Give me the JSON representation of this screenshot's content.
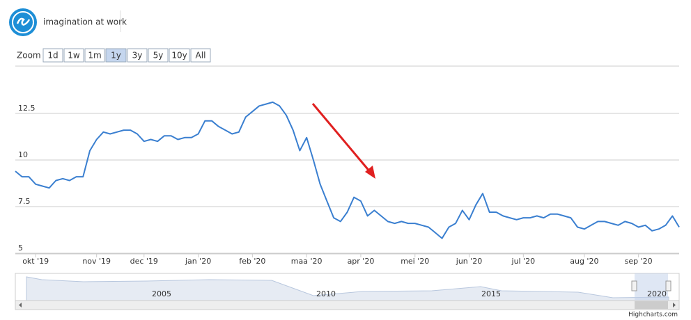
{
  "header": {
    "tagline": "imagination at work"
  },
  "zoom": {
    "label": "Zoom",
    "buttons": [
      "1d",
      "1w",
      "1m",
      "1y",
      "3y",
      "5y",
      "10y",
      "All"
    ],
    "selected": 3,
    "disabled": 0
  },
  "chart_data": {
    "type": "line",
    "color": "#3a7fd0",
    "grid": true,
    "categories": [
      null,
      null,
      null,
      "okt '19",
      null,
      null,
      null,
      null,
      null,
      null,
      null,
      null,
      "nov '19",
      null,
      null,
      null,
      null,
      null,
      null,
      "dec '19",
      null,
      null,
      null,
      null,
      null,
      null,
      null,
      "jan '20",
      null,
      null,
      null,
      null,
      null,
      null,
      null,
      "feb '20",
      null,
      null,
      null,
      null,
      null,
      null,
      null,
      "maa '20",
      null,
      null,
      null,
      null,
      null,
      null,
      null,
      "apr '20",
      null,
      null,
      null,
      null,
      null,
      null,
      null,
      "mei '20",
      null,
      null,
      null,
      null,
      null,
      null,
      null,
      "jun '20",
      null,
      null,
      null,
      null,
      null,
      null,
      null,
      "jul '20",
      null,
      null,
      null,
      null,
      null,
      null,
      null,
      null,
      "aug '20",
      null,
      null,
      null,
      null,
      null,
      null,
      null,
      "sep '20",
      null,
      null,
      null,
      null,
      null,
      null
    ],
    "values": [
      9.4,
      9.1,
      9.1,
      8.7,
      8.6,
      8.5,
      8.9,
      9.0,
      8.9,
      9.1,
      9.1,
      10.5,
      11.1,
      11.5,
      11.4,
      11.5,
      11.6,
      11.6,
      11.4,
      11.0,
      11.1,
      11.0,
      11.3,
      11.3,
      11.1,
      11.2,
      11.2,
      11.4,
      12.1,
      12.1,
      11.8,
      11.6,
      11.4,
      11.5,
      12.3,
      12.6,
      12.9,
      13.0,
      13.1,
      12.9,
      12.4,
      11.6,
      10.5,
      11.2,
      10.0,
      8.7,
      7.8,
      6.9,
      6.7,
      7.2,
      8.0,
      7.8,
      7.0,
      7.3,
      7.0,
      6.7,
      6.6,
      6.7,
      6.6,
      6.6,
      6.5,
      6.4,
      6.1,
      5.8,
      6.4,
      6.6,
      7.3,
      6.8,
      7.6,
      8.2,
      7.2,
      7.2,
      7.0,
      6.9,
      6.8,
      6.9,
      6.9,
      7.0,
      6.9,
      7.1,
      7.1,
      7.0,
      6.9,
      6.4,
      6.3,
      6.5,
      6.7,
      6.7,
      6.6,
      6.5,
      6.7,
      6.6,
      6.4,
      6.5,
      6.2,
      6.3,
      6.5,
      7.0,
      6.4
    ],
    "ylim": [
      5,
      15
    ],
    "yticks": [
      5,
      7.5,
      10,
      12.5
    ]
  },
  "navigator": {
    "labels": [
      "2005",
      "2010",
      "2015",
      "2020"
    ]
  },
  "credit": "Highcharts.com"
}
